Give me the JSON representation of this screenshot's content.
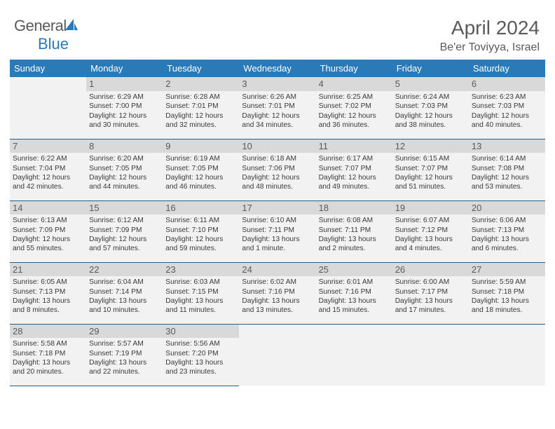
{
  "brand": {
    "part1": "General",
    "part2": "Blue"
  },
  "title": "April 2024",
  "location": "Be'er Toviyya, Israel",
  "colors": {
    "header_bg": "#2a7ab8",
    "header_text": "#ffffff",
    "cell_bg": "#f2f2f2",
    "daynum_bg": "#d9d9d9",
    "border": "#2a5a88",
    "text": "#5a5a5a",
    "brand_blue": "#2a7ab8"
  },
  "weekdays": [
    "Sunday",
    "Monday",
    "Tuesday",
    "Wednesday",
    "Thursday",
    "Friday",
    "Saturday"
  ],
  "layout": {
    "start_offset": 1,
    "num_days": 30
  },
  "days": {
    "1": {
      "sunrise": "6:29 AM",
      "sunset": "7:00 PM",
      "daylight": "12 hours and 30 minutes."
    },
    "2": {
      "sunrise": "6:28 AM",
      "sunset": "7:01 PM",
      "daylight": "12 hours and 32 minutes."
    },
    "3": {
      "sunrise": "6:26 AM",
      "sunset": "7:01 PM",
      "daylight": "12 hours and 34 minutes."
    },
    "4": {
      "sunrise": "6:25 AM",
      "sunset": "7:02 PM",
      "daylight": "12 hours and 36 minutes."
    },
    "5": {
      "sunrise": "6:24 AM",
      "sunset": "7:03 PM",
      "daylight": "12 hours and 38 minutes."
    },
    "6": {
      "sunrise": "6:23 AM",
      "sunset": "7:03 PM",
      "daylight": "12 hours and 40 minutes."
    },
    "7": {
      "sunrise": "6:22 AM",
      "sunset": "7:04 PM",
      "daylight": "12 hours and 42 minutes."
    },
    "8": {
      "sunrise": "6:20 AM",
      "sunset": "7:05 PM",
      "daylight": "12 hours and 44 minutes."
    },
    "9": {
      "sunrise": "6:19 AM",
      "sunset": "7:05 PM",
      "daylight": "12 hours and 46 minutes."
    },
    "10": {
      "sunrise": "6:18 AM",
      "sunset": "7:06 PM",
      "daylight": "12 hours and 48 minutes."
    },
    "11": {
      "sunrise": "6:17 AM",
      "sunset": "7:07 PM",
      "daylight": "12 hours and 49 minutes."
    },
    "12": {
      "sunrise": "6:15 AM",
      "sunset": "7:07 PM",
      "daylight": "12 hours and 51 minutes."
    },
    "13": {
      "sunrise": "6:14 AM",
      "sunset": "7:08 PM",
      "daylight": "12 hours and 53 minutes."
    },
    "14": {
      "sunrise": "6:13 AM",
      "sunset": "7:09 PM",
      "daylight": "12 hours and 55 minutes."
    },
    "15": {
      "sunrise": "6:12 AM",
      "sunset": "7:09 PM",
      "daylight": "12 hours and 57 minutes."
    },
    "16": {
      "sunrise": "6:11 AM",
      "sunset": "7:10 PM",
      "daylight": "12 hours and 59 minutes."
    },
    "17": {
      "sunrise": "6:10 AM",
      "sunset": "7:11 PM",
      "daylight": "13 hours and 1 minute."
    },
    "18": {
      "sunrise": "6:08 AM",
      "sunset": "7:11 PM",
      "daylight": "13 hours and 2 minutes."
    },
    "19": {
      "sunrise": "6:07 AM",
      "sunset": "7:12 PM",
      "daylight": "13 hours and 4 minutes."
    },
    "20": {
      "sunrise": "6:06 AM",
      "sunset": "7:13 PM",
      "daylight": "13 hours and 6 minutes."
    },
    "21": {
      "sunrise": "6:05 AM",
      "sunset": "7:13 PM",
      "daylight": "13 hours and 8 minutes."
    },
    "22": {
      "sunrise": "6:04 AM",
      "sunset": "7:14 PM",
      "daylight": "13 hours and 10 minutes."
    },
    "23": {
      "sunrise": "6:03 AM",
      "sunset": "7:15 PM",
      "daylight": "13 hours and 11 minutes."
    },
    "24": {
      "sunrise": "6:02 AM",
      "sunset": "7:16 PM",
      "daylight": "13 hours and 13 minutes."
    },
    "25": {
      "sunrise": "6:01 AM",
      "sunset": "7:16 PM",
      "daylight": "13 hours and 15 minutes."
    },
    "26": {
      "sunrise": "6:00 AM",
      "sunset": "7:17 PM",
      "daylight": "13 hours and 17 minutes."
    },
    "27": {
      "sunrise": "5:59 AM",
      "sunset": "7:18 PM",
      "daylight": "13 hours and 18 minutes."
    },
    "28": {
      "sunrise": "5:58 AM",
      "sunset": "7:18 PM",
      "daylight": "13 hours and 20 minutes."
    },
    "29": {
      "sunrise": "5:57 AM",
      "sunset": "7:19 PM",
      "daylight": "13 hours and 22 minutes."
    },
    "30": {
      "sunrise": "5:56 AM",
      "sunset": "7:20 PM",
      "daylight": "13 hours and 23 minutes."
    }
  },
  "labels": {
    "sunrise": "Sunrise:",
    "sunset": "Sunset:",
    "daylight": "Daylight:"
  }
}
